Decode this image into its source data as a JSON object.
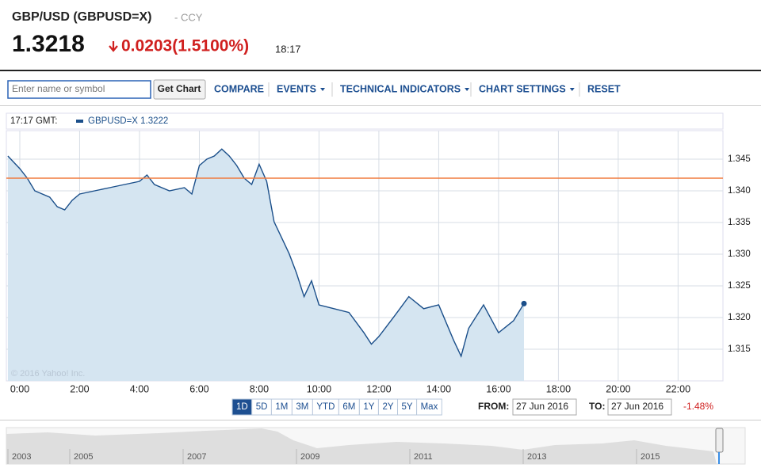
{
  "header": {
    "title": "GBP/USD (GBPUSD=X)",
    "exchange": "- CCY",
    "price": "1.3218",
    "change": "0.0203(1.5100%)",
    "time": "18:17"
  },
  "toolbar": {
    "search_placeholder": "Enter name or symbol",
    "button": "Get Chart",
    "menu": [
      "COMPARE",
      "EVENTS",
      "TECHNICAL INDICATORS",
      "CHART SETTINGS",
      "RESET"
    ]
  },
  "chart_data": {
    "type": "line",
    "legend_time": "17:17 GMT:",
    "copyright": "© 2016 Yahoo! Inc.",
    "x": [
      -0.4,
      0,
      0.25,
      0.5,
      1,
      1.25,
      1.5,
      1.75,
      2,
      2.5,
      3,
      3.5,
      4,
      4.25,
      4.5,
      5,
      5.5,
      5.75,
      6,
      6.25,
      6.5,
      6.75,
      7,
      7.25,
      7.5,
      7.75,
      8,
      8.25,
      8.5,
      8.75,
      9,
      9.25,
      9.5,
      9.75,
      10,
      10.5,
      11,
      11.5,
      11.75,
      12,
      12.5,
      13,
      13.5,
      14,
      14.5,
      14.75,
      15,
      15.5,
      16,
      16.5,
      16.85
    ],
    "series": [
      {
        "name": "GBPUSD=X 1.3222",
        "color": "#1b4f8a",
        "fill": "#d5e5f1",
        "values": [
          1.3455,
          1.3435,
          1.342,
          1.34,
          1.339,
          1.3375,
          1.337,
          1.3385,
          1.3395,
          1.34,
          1.3405,
          1.341,
          1.3415,
          1.3425,
          1.341,
          1.34,
          1.3405,
          1.3395,
          1.344,
          1.345,
          1.3455,
          1.3466,
          1.3455,
          1.344,
          1.342,
          1.341,
          1.3442,
          1.3415,
          1.3351,
          1.3326,
          1.3301,
          1.327,
          1.3233,
          1.3258,
          1.322,
          1.3214,
          1.3208,
          1.3176,
          1.3158,
          1.317,
          1.3201,
          1.3233,
          1.3214,
          1.322,
          1.3164,
          1.3139,
          1.3183,
          1.322,
          1.3176,
          1.3195,
          1.3222
        ]
      }
    ],
    "reference_line": {
      "value": 1.342,
      "color": "#f07b3f"
    },
    "xlim": [
      -0.45,
      23.5
    ],
    "xticks": [
      {
        "value": 0,
        "label": "0:00"
      },
      {
        "value": 2,
        "label": "2:00"
      },
      {
        "value": 4,
        "label": "4:00"
      },
      {
        "value": 6,
        "label": "6:00"
      },
      {
        "value": 8,
        "label": "8:00"
      },
      {
        "value": 10,
        "label": "10:00"
      },
      {
        "value": 12,
        "label": "12:00"
      },
      {
        "value": 14,
        "label": "14:00"
      },
      {
        "value": 16,
        "label": "16:00"
      },
      {
        "value": 18,
        "label": "18:00"
      },
      {
        "value": 20,
        "label": "20:00"
      },
      {
        "value": 22,
        "label": "22:00"
      }
    ],
    "ylim": [
      1.31,
      1.3495
    ],
    "yticks": [
      1.315,
      {
        "value": 1.32,
        "label": "1.320"
      },
      1.325,
      {
        "value": 1.33,
        "label": "1.330"
      },
      1.335,
      {
        "value": 1.34,
        "label": "1.340"
      },
      1.345
    ],
    "grid": true
  },
  "ranges": [
    "1D",
    "5D",
    "1M",
    "3M",
    "YTD",
    "6M",
    "1Y",
    "2Y",
    "5Y",
    "Max"
  ],
  "from_label": "FROM:",
  "from_date": "27 Jun 2016",
  "to_label": "TO:",
  "to_date": "27 Jun 2016",
  "period_change": "-1.48%",
  "navigator": {
    "years": [
      "2003",
      "2005",
      "2007",
      "2009",
      "2011",
      "2013",
      "2015"
    ]
  }
}
